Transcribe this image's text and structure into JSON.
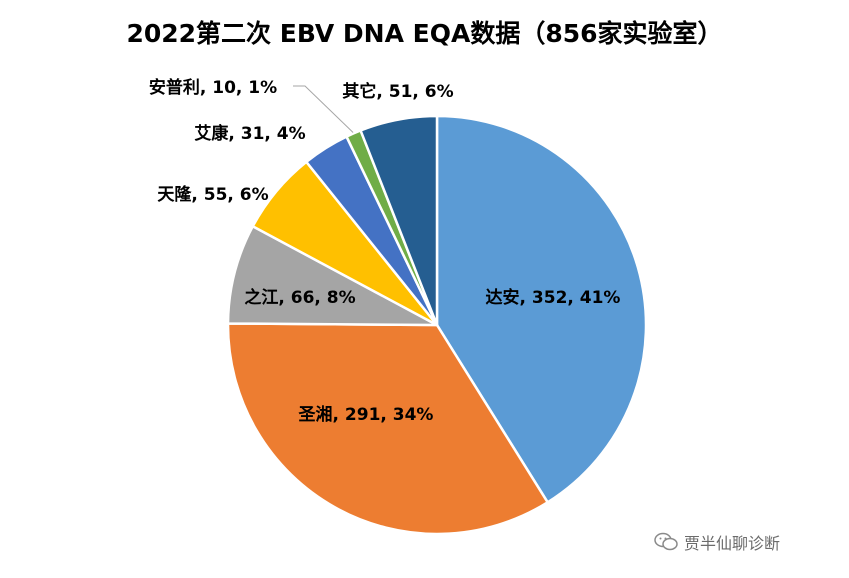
{
  "chart_data": {
    "type": "pie",
    "title": "2022第二次 EBV DNA EQA数据（856家实验室）",
    "categories": [
      "达安",
      "圣湘",
      "之江",
      "天隆",
      "艾康",
      "安普利",
      "其它"
    ],
    "values": [
      352,
      291,
      66,
      55,
      31,
      10,
      51
    ],
    "percent_labels": [
      "41%",
      "34%",
      "8%",
      "6%",
      "4%",
      "1%",
      "6%"
    ],
    "data_labels": [
      "达安, 352, 41%",
      "圣湘, 291, 34%",
      "之江, 66, 8%",
      "天隆, 55, 6%",
      "艾康, 31, 4%",
      "安普利, 10, 1%",
      "其它, 51, 6%"
    ],
    "colors": [
      "#5B9BD5",
      "#ED7D31",
      "#A5A5A5",
      "#FFC000",
      "#4472C4",
      "#70AD47",
      "#255E91"
    ],
    "start_angle_deg": 0,
    "direction": "clockwise"
  },
  "watermark": {
    "text": "贾半仙聊诊断",
    "icon": "wechat-icon"
  }
}
